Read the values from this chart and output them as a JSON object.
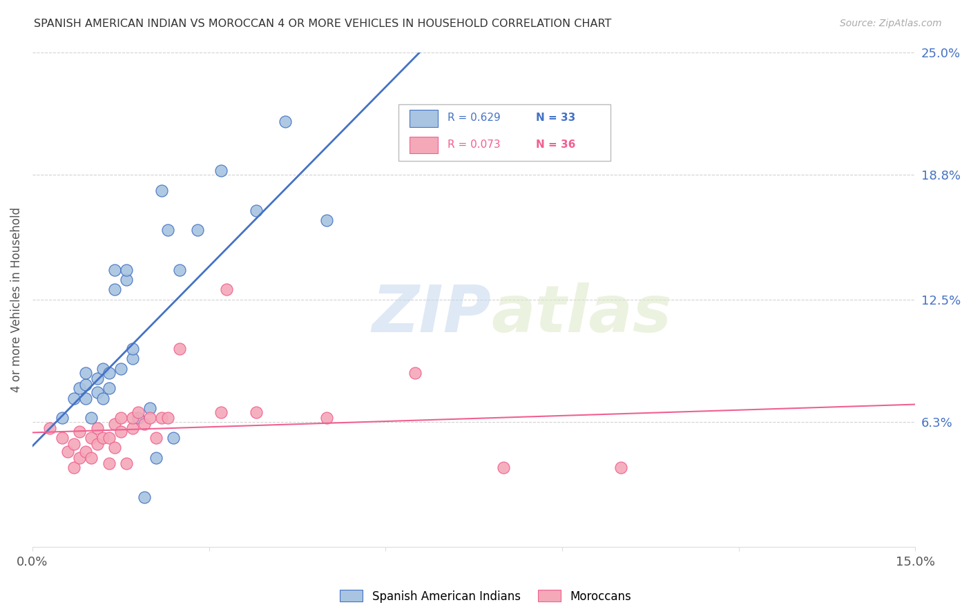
{
  "title": "SPANISH AMERICAN INDIAN VS MOROCCAN 4 OR MORE VEHICLES IN HOUSEHOLD CORRELATION CHART",
  "source": "Source: ZipAtlas.com",
  "ylabel": "4 or more Vehicles in Household",
  "xlim": [
    0.0,
    0.15
  ],
  "ylim": [
    0.0,
    0.25
  ],
  "yticks_right": [
    0.0,
    0.063,
    0.125,
    0.188,
    0.25
  ],
  "ytick_labels_right": [
    "",
    "6.3%",
    "12.5%",
    "18.8%",
    "25.0%"
  ],
  "watermark_zip": "ZIP",
  "watermark_atlas": "atlas",
  "blue_color": "#a8c4e0",
  "pink_color": "#f4a8b8",
  "blue_line_color": "#4472C4",
  "pink_line_color": "#f06090",
  "blue_scatter_x": [
    0.005,
    0.007,
    0.008,
    0.009,
    0.009,
    0.009,
    0.01,
    0.011,
    0.011,
    0.012,
    0.012,
    0.013,
    0.013,
    0.014,
    0.014,
    0.015,
    0.016,
    0.016,
    0.017,
    0.017,
    0.018,
    0.019,
    0.02,
    0.021,
    0.022,
    0.023,
    0.024,
    0.025,
    0.028,
    0.032,
    0.038,
    0.043,
    0.05
  ],
  "blue_scatter_y": [
    0.065,
    0.075,
    0.08,
    0.075,
    0.082,
    0.088,
    0.065,
    0.078,
    0.085,
    0.075,
    0.09,
    0.08,
    0.088,
    0.13,
    0.14,
    0.09,
    0.135,
    0.14,
    0.095,
    0.1,
    0.065,
    0.025,
    0.07,
    0.045,
    0.18,
    0.16,
    0.055,
    0.14,
    0.16,
    0.19,
    0.17,
    0.215,
    0.165
  ],
  "pink_scatter_x": [
    0.003,
    0.005,
    0.006,
    0.007,
    0.007,
    0.008,
    0.008,
    0.009,
    0.01,
    0.01,
    0.011,
    0.011,
    0.012,
    0.013,
    0.013,
    0.014,
    0.014,
    0.015,
    0.015,
    0.016,
    0.017,
    0.017,
    0.018,
    0.019,
    0.02,
    0.021,
    0.022,
    0.023,
    0.025,
    0.032,
    0.033,
    0.038,
    0.05,
    0.065,
    0.08,
    0.1
  ],
  "pink_scatter_y": [
    0.06,
    0.055,
    0.048,
    0.04,
    0.052,
    0.045,
    0.058,
    0.048,
    0.045,
    0.055,
    0.052,
    0.06,
    0.055,
    0.042,
    0.055,
    0.05,
    0.062,
    0.058,
    0.065,
    0.042,
    0.06,
    0.065,
    0.068,
    0.062,
    0.065,
    0.055,
    0.065,
    0.065,
    0.1,
    0.068,
    0.13,
    0.068,
    0.065,
    0.088,
    0.04,
    0.04
  ],
  "grid_color": "#cccccc",
  "background_color": "#ffffff",
  "legend_label_blue": "Spanish American Indians",
  "legend_label_pink": "Moroccans"
}
